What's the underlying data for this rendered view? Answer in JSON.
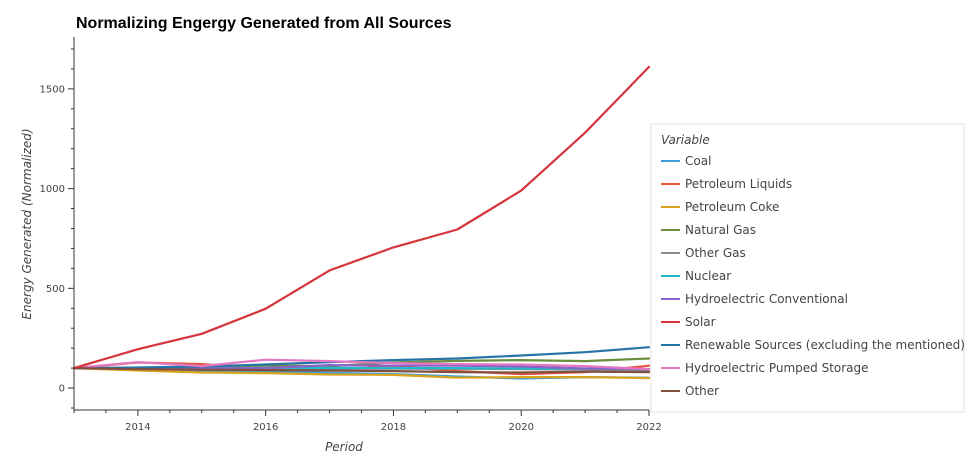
{
  "chart_data": {
    "type": "line",
    "title": "Normalizing Engergy Generated from All Sources",
    "xlabel": "Period",
    "ylabel": "Energy Generated (Normalized)",
    "x": [
      2013,
      2014,
      2015,
      2016,
      2017,
      2018,
      2019,
      2020,
      2021,
      2022
    ],
    "xlim": [
      2013,
      2022
    ],
    "ylim": [
      -110,
      1760
    ],
    "x_ticks": [
      2014,
      2016,
      2018,
      2020,
      2022
    ],
    "y_ticks": [
      0,
      500,
      1000,
      1500
    ],
    "grid": false,
    "legend": {
      "title": "Variable",
      "placement": "right"
    },
    "series": [
      {
        "name": "Coal",
        "color": "#3b9fd8",
        "values": [
          100,
          95,
          88,
          82,
          76,
          70,
          58,
          48,
          55,
          52
        ]
      },
      {
        "name": "Petroleum Liquids",
        "color": "#e8553f",
        "values": [
          100,
          128,
          120,
          95,
          90,
          110,
          85,
          70,
          80,
          112
        ]
      },
      {
        "name": "Petroleum Coke",
        "color": "#d9a31f",
        "values": [
          100,
          88,
          78,
          75,
          68,
          66,
          52,
          55,
          55,
          50
        ]
      },
      {
        "name": "Natural Gas",
        "color": "#6b8e3e",
        "values": [
          100,
          100,
          108,
          112,
          110,
          128,
          136,
          140,
          135,
          148
        ]
      },
      {
        "name": "Other Gas",
        "color": "#8c8c8c",
        "values": [
          100,
          98,
          97,
          96,
          98,
          97,
          96,
          95,
          92,
          90
        ]
      },
      {
        "name": "Nuclear",
        "color": "#22b8c8",
        "values": [
          100,
          101,
          100,
          101,
          101,
          100,
          100,
          98,
          97,
          95
        ]
      },
      {
        "name": "Hydroelectric Conventional",
        "color": "#8a63c8",
        "values": [
          100,
          96,
          99,
          100,
          115,
          112,
          112,
          108,
          98,
          95
        ]
      },
      {
        "name": "Solar",
        "color": "#d4343a",
        "values": [
          100,
          195,
          272,
          398,
          590,
          705,
          795,
          990,
          1280,
          1610
        ]
      },
      {
        "name": "Renewable Sources (excluding the mentioned)",
        "color": "#2874a6",
        "values": [
          100,
          103,
          108,
          118,
          130,
          140,
          148,
          163,
          180,
          205
        ]
      },
      {
        "name": "Hydroelectric Pumped Storage",
        "color": "#e377c2",
        "values": [
          100,
          130,
          110,
          142,
          135,
          125,
          120,
          118,
          110,
          95
        ]
      },
      {
        "name": "Other",
        "color": "#7f4f3f",
        "values": [
          100,
          95,
          92,
          90,
          88,
          85,
          80,
          78,
          82,
          80
        ]
      }
    ]
  }
}
